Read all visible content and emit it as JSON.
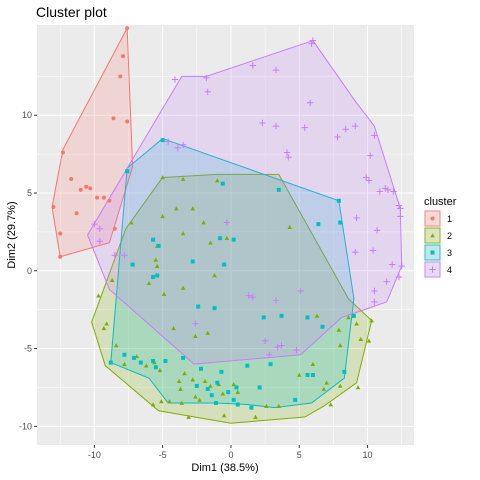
{
  "chart_data": {
    "type": "scatter",
    "title": "Cluster plot",
    "xlabel": "Dim1 (38.5%)",
    "ylabel": "Dim2 (29.7%)",
    "xlim": [
      -14.2,
      13.4
    ],
    "ylim": [
      -11.2,
      15.8
    ],
    "xticks": [
      -10,
      -5,
      0,
      5,
      10
    ],
    "yticks": [
      -10,
      -5,
      0,
      5,
      10
    ],
    "grid": true,
    "legend": {
      "title": "cluster",
      "position": "right"
    },
    "series": [
      {
        "name": "1",
        "color": "#F8766D",
        "shape": "circle",
        "points": [
          [
            -7.6,
            15.6
          ],
          [
            -7.9,
            13.8
          ],
          [
            -8.1,
            12.5
          ],
          [
            -8.6,
            9.8
          ],
          [
            -7.6,
            9.6
          ],
          [
            -11.7,
            5.9
          ],
          [
            -10.6,
            5.4
          ],
          [
            -10.3,
            5.3
          ],
          [
            -11.0,
            5.2
          ],
          [
            -13.0,
            4.1
          ],
          [
            -9.8,
            4.7
          ],
          [
            -11.3,
            3.7
          ],
          [
            -9.3,
            4.7
          ],
          [
            -8.9,
            4.5
          ],
          [
            -12.5,
            2.4
          ],
          [
            -12.5,
            0.9
          ],
          [
            -12.3,
            7.6
          ],
          [
            -8.5,
            2.7
          ]
        ],
        "hull": [
          [
            -7.6,
            15.6
          ],
          [
            -7.2,
            6.7
          ],
          [
            -8.9,
            1.8
          ],
          [
            -12.5,
            0.9
          ],
          [
            -13.1,
            4.1
          ],
          [
            -12.3,
            7.8
          ]
        ]
      },
      {
        "name": "2",
        "color": "#7CAE00",
        "shape": "triangle",
        "points": [
          [
            -5.0,
            6.0
          ],
          [
            -3.5,
            5.9
          ],
          [
            -1.0,
            5.8
          ],
          [
            -2.8,
            4.0
          ],
          [
            -4.0,
            4.0
          ],
          [
            -2.0,
            3.1
          ],
          [
            4.3,
            2.8
          ],
          [
            -0.3,
            2.1
          ],
          [
            -7.3,
            3.1
          ],
          [
            -5.0,
            3.5
          ],
          [
            -3.5,
            2.4
          ],
          [
            -1.5,
            1.8
          ],
          [
            -5.4,
            1.6
          ],
          [
            -1.2,
            -0.3
          ],
          [
            -8.7,
            -0.6
          ],
          [
            -6.0,
            -0.8
          ],
          [
            -5.4,
            0.3
          ],
          [
            -5.5,
            0.7
          ],
          [
            -4.9,
            -1.5
          ],
          [
            -3.5,
            -1.1
          ],
          [
            -4.2,
            -3.7
          ],
          [
            -2.6,
            -4.2
          ],
          [
            -1.7,
            -4.0
          ],
          [
            -9.7,
            -1.6
          ],
          [
            -9.3,
            -3.7
          ],
          [
            -9.1,
            -3.4
          ],
          [
            -8.4,
            -4.8
          ],
          [
            -7.8,
            -6.0
          ],
          [
            -6.2,
            -6.1
          ],
          [
            -6.9,
            -5.5
          ],
          [
            -5.6,
            -5.9
          ],
          [
            -5.2,
            -6.4
          ],
          [
            -3.4,
            -6.6
          ],
          [
            -3.8,
            -7.1
          ],
          [
            -3.7,
            -7.6
          ],
          [
            -2.8,
            -7.0
          ],
          [
            -1.9,
            -7.1
          ],
          [
            -0.9,
            -7.3
          ],
          [
            -0.6,
            -7.9
          ],
          [
            0.2,
            -7.3
          ],
          [
            0.5,
            -7.8
          ],
          [
            -2.3,
            -8.3
          ],
          [
            -2.6,
            -8.1
          ],
          [
            -1.5,
            -7.4
          ],
          [
            -3.6,
            -8.5
          ],
          [
            -4.5,
            -8.4
          ],
          [
            -5.1,
            -8.4
          ],
          [
            -3.1,
            -9.4
          ],
          [
            -5.7,
            -8.6
          ],
          [
            -0.5,
            -9.3
          ],
          [
            1.8,
            -9.4
          ],
          [
            2.6,
            -8.7
          ],
          [
            3.5,
            -8.7
          ],
          [
            5.0,
            -6.7
          ],
          [
            6.0,
            -6.0
          ],
          [
            6.8,
            -7.6
          ],
          [
            7.0,
            -7.2
          ],
          [
            8.0,
            -7.4
          ],
          [
            7.3,
            -8.6
          ],
          [
            9.3,
            -7.5
          ],
          [
            10.3,
            -3.2
          ],
          [
            9.5,
            -4.4
          ],
          [
            10.1,
            -4.5
          ],
          [
            8.0,
            -4.8
          ],
          [
            7.9,
            -3.8
          ],
          [
            6.3,
            -2.9
          ],
          [
            8.6,
            -3.0
          ],
          [
            9.2,
            -3.4
          ]
        ],
        "hull": [
          [
            -5.0,
            6.0
          ],
          [
            -1.0,
            6.2
          ],
          [
            3.5,
            6.2
          ],
          [
            8.6,
            -1.8
          ],
          [
            10.3,
            -3.2
          ],
          [
            9.2,
            -7.2
          ],
          [
            6.8,
            -8.7
          ],
          [
            5.4,
            -9.4
          ],
          [
            0.0,
            -9.8
          ],
          [
            -5.3,
            -9.0
          ],
          [
            -9.2,
            -6.1
          ],
          [
            -10.2,
            -3.3
          ],
          [
            -7.7,
            2.7
          ],
          [
            -5.5,
            5.4
          ]
        ]
      },
      {
        "name": "3",
        "color": "#00BFC4",
        "shape": "square",
        "points": [
          [
            -7.6,
            6.4
          ],
          [
            -8.8,
            -5.9
          ],
          [
            -5.0,
            8.4
          ],
          [
            -0.6,
            5.6
          ],
          [
            3.5,
            5.2
          ],
          [
            7.9,
            4.5
          ],
          [
            8.0,
            3.1
          ],
          [
            6.4,
            3.0
          ],
          [
            -0.8,
            2.1
          ],
          [
            -5.7,
            2.0
          ],
          [
            0.2,
            2.0
          ],
          [
            -5.3,
            1.6
          ],
          [
            -7.2,
            0.4
          ],
          [
            -2.8,
            0.6
          ],
          [
            -0.5,
            0.4
          ],
          [
            -5.4,
            -0.3
          ],
          [
            -5.7,
            -0.4
          ],
          [
            -2.4,
            -2.3
          ],
          [
            -1.2,
            -2.4
          ],
          [
            2.4,
            -3.0
          ],
          [
            3.7,
            -2.9
          ],
          [
            5.6,
            -3.0
          ],
          [
            6.7,
            -3.6
          ],
          [
            9.0,
            -2.9
          ],
          [
            -5.5,
            -6.2
          ],
          [
            -2.2,
            -6.3
          ],
          [
            2.9,
            -6.0
          ],
          [
            -7.8,
            -5.4
          ],
          [
            -7.1,
            -5.6
          ],
          [
            -6.6,
            -5.9
          ],
          [
            -5.7,
            -5.8
          ],
          [
            -4.8,
            -5.8
          ],
          [
            -3.5,
            -5.6
          ],
          [
            -0.7,
            -6.5
          ],
          [
            1.2,
            -6.1
          ],
          [
            -1.0,
            -7.2
          ],
          [
            0.4,
            -7.5
          ],
          [
            2.1,
            -7.5
          ],
          [
            5.6,
            -6.7
          ],
          [
            6.0,
            -6.7
          ],
          [
            8.3,
            -6.5
          ],
          [
            -2.5,
            -7.4
          ],
          [
            -0.2,
            -7.8
          ],
          [
            -1.4,
            -8.0
          ],
          [
            4.7,
            -8.3
          ],
          [
            -1.7,
            -7.6
          ],
          [
            -1.1,
            -8.5
          ],
          [
            0.2,
            -8.3
          ],
          [
            0.5,
            -8.6
          ],
          [
            1.5,
            -8.8
          ]
        ],
        "hull": [
          [
            -5.0,
            8.5
          ],
          [
            7.9,
            4.5
          ],
          [
            9.0,
            -1.8
          ],
          [
            8.3,
            -6.9
          ],
          [
            5.9,
            -8.5
          ],
          [
            3.2,
            -8.8
          ],
          [
            1.2,
            -8.6
          ],
          [
            -1.1,
            -8.5
          ],
          [
            -4.6,
            -8.5
          ],
          [
            -6.0,
            -6.9
          ],
          [
            -8.8,
            -5.9
          ],
          [
            -7.6,
            6.6
          ]
        ]
      },
      {
        "name": "4",
        "color": "#C77CFF",
        "shape": "plus",
        "points": [
          [
            6.0,
            14.8
          ],
          [
            5.9,
            14.6
          ],
          [
            1.6,
            13.2
          ],
          [
            3.3,
            12.9
          ],
          [
            -1.8,
            12.4
          ],
          [
            -4.1,
            12.3
          ],
          [
            -1.7,
            11.5
          ],
          [
            5.8,
            10.8
          ],
          [
            2.3,
            9.5
          ],
          [
            3.3,
            9.3
          ],
          [
            5.4,
            9.2
          ],
          [
            8.4,
            9.1
          ],
          [
            7.8,
            8.6
          ],
          [
            9.1,
            9.3
          ],
          [
            10.5,
            8.7
          ],
          [
            -4.6,
            8.3
          ],
          [
            -3.9,
            7.9
          ],
          [
            -3.5,
            8.1
          ],
          [
            4.1,
            7.6
          ],
          [
            4.2,
            7.3
          ],
          [
            10.2,
            7.4
          ],
          [
            9.9,
            6.0
          ],
          [
            10.1,
            5.8
          ],
          [
            10.9,
            5.1
          ],
          [
            11.3,
            5.3
          ],
          [
            11.5,
            5.2
          ],
          [
            11.9,
            5.1
          ],
          [
            12.3,
            4.2
          ],
          [
            12.4,
            4.0
          ],
          [
            12.4,
            3.5
          ],
          [
            9.2,
            3.4
          ],
          [
            10.7,
            2.6
          ],
          [
            9.1,
            1.2
          ],
          [
            10.4,
            1.3
          ],
          [
            11.8,
            0.4
          ],
          [
            11.4,
            -0.7
          ],
          [
            12.3,
            -0.4
          ],
          [
            12.5,
            0.3
          ],
          [
            10.5,
            -1.3
          ],
          [
            10.5,
            -2.0
          ],
          [
            -10.0,
            3.0
          ],
          [
            -9.6,
            2.7
          ],
          [
            -9.6,
            1.9
          ],
          [
            -0.3,
            3.1
          ],
          [
            -7.8,
            1.0
          ],
          [
            1.3,
            -1.6
          ],
          [
            1.6,
            -1.7
          ],
          [
            3.3,
            -1.9
          ],
          [
            5.1,
            -1.3
          ],
          [
            -2.6,
            -3.4
          ],
          [
            3.4,
            -4.9
          ],
          [
            2.8,
            -5.4
          ],
          [
            3.7,
            -4.8
          ],
          [
            4.8,
            -5.1
          ],
          [
            2.5,
            -4.5
          ],
          [
            -8.5,
            1.0
          ]
        ],
        "hull": [
          [
            6.0,
            14.8
          ],
          [
            9.1,
            10.9
          ],
          [
            10.5,
            9.3
          ],
          [
            12.4,
            4.0
          ],
          [
            12.5,
            0.3
          ],
          [
            11.4,
            -2.0
          ],
          [
            10.1,
            -2.4
          ],
          [
            8.1,
            -3.0
          ],
          [
            5.1,
            -5.4
          ],
          [
            -2.7,
            -6.0
          ],
          [
            -8.9,
            -1.2
          ],
          [
            -10.5,
            2.3
          ],
          [
            -3.6,
            12.5
          ],
          [
            -1.8,
            12.5
          ]
        ]
      }
    ]
  }
}
